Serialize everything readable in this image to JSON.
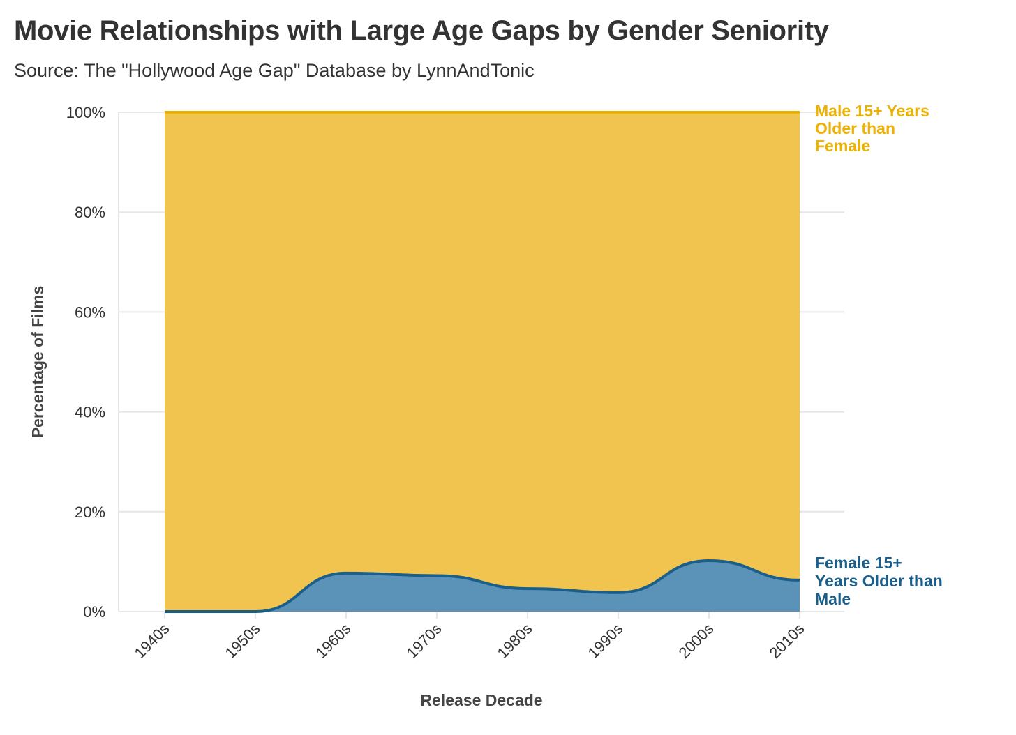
{
  "title": "Movie Relationships with Large Age Gaps by Gender Seniority",
  "subtitle": "Source: The \"Hollywood Age Gap\" Database by LynnAndTonic",
  "colors": {
    "male": "#EDB103",
    "male_fill": "#F0C44E",
    "female": "#1A5F8C",
    "female_fill": "#5B93B8",
    "grid": "#E6E6E6"
  },
  "chart_data": {
    "type": "area",
    "stacked": true,
    "percent": true,
    "categories": [
      "1940s",
      "1950s",
      "1960s",
      "1970s",
      "1980s",
      "1990s",
      "2000s",
      "2010s"
    ],
    "xlabel": "Release Decade",
    "ylabel": "Percentage of Films",
    "ylim": [
      0,
      100
    ],
    "yticks": [
      "0%",
      "20%",
      "40%",
      "60%",
      "80%",
      "100%"
    ],
    "grid": true,
    "series": [
      {
        "name": "Female 15+ Years Older than Male",
        "label_lines": [
          "Female 15+",
          "Years Older than",
          "Male"
        ],
        "values": [
          0,
          0,
          7.7,
          7.2,
          4.6,
          3.8,
          10.2,
          6.3
        ]
      },
      {
        "name": "Male 15+ Years Older than Female",
        "label_lines": [
          "Male 15+ Years",
          "Older than",
          "Female"
        ],
        "values": [
          100,
          100,
          92.3,
          92.8,
          95.4,
          96.2,
          89.8,
          93.7
        ]
      }
    ]
  }
}
